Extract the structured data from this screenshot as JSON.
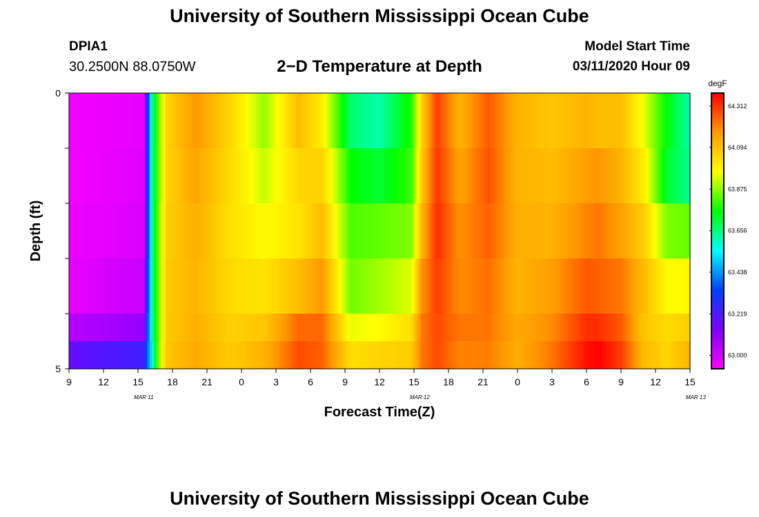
{
  "header": {
    "title": "University of Southern Mississippi Ocean Cube",
    "station_id": "DPIA1",
    "station_coords": "30.2500N 88.0750W",
    "chart_title": "2−D Temperature at Depth",
    "model_start_label": "Model Start Time",
    "model_start_time": "03/11/2020 Hour 09"
  },
  "footer": {
    "title": "University of Southern Mississippi Ocean Cube"
  },
  "chart_data": {
    "type": "heatmap",
    "title": "2−D Temperature at Depth",
    "xlabel": "Forecast Time(Z)",
    "ylabel": "Depth (ft)",
    "x_tick_labels": [
      "9",
      "12",
      "15",
      "18",
      "21",
      "0",
      "3",
      "6",
      "9",
      "12",
      "15",
      "18",
      "21",
      "0",
      "3",
      "6",
      "9",
      "12",
      "15"
    ],
    "y_tick_labels": [
      "0",
      "5"
    ],
    "date_labels": [
      "MAR 11",
      "MAR 12",
      "MAR 13"
    ],
    "x_hours": [
      0,
      54
    ],
    "depth_range_ft": [
      0,
      5
    ],
    "colorbar_unit": "degF",
    "colorbar_ticks": [
      "64.312",
      "64.094",
      "63.875",
      "63.656",
      "63.438",
      "63.219",
      "63.000"
    ],
    "color_range": [
      62.93,
      64.38
    ],
    "colorscale": [
      "#ff00ff",
      "#8000ff",
      "#0040ff",
      "#00ffff",
      "#00ff00",
      "#ffff00",
      "#ff9900",
      "#ff0000"
    ],
    "depth_layers_ft": [
      0.25,
      1.25,
      2.25,
      3.25,
      4.25,
      4.75
    ],
    "temperature_keyframes": [
      {
        "hour": 0,
        "temps": [
          62.95,
          62.95,
          62.96,
          62.97,
          63.05,
          63.18
        ]
      },
      {
        "hour": 6.5,
        "temps": [
          62.97,
          62.98,
          62.99,
          63.02,
          63.1,
          63.24
        ]
      },
      {
        "hour": 7.2,
        "temps": [
          63.62,
          63.62,
          63.62,
          63.62,
          63.6,
          63.55
        ]
      },
      {
        "hour": 7.8,
        "temps": [
          63.85,
          63.85,
          63.86,
          63.86,
          63.86,
          63.87
        ]
      },
      {
        "hour": 8.5,
        "temps": [
          64.05,
          64.05,
          64.06,
          64.07,
          64.07,
          64.08
        ]
      },
      {
        "hour": 11,
        "temps": [
          64.17,
          64.15,
          64.13,
          64.12,
          64.13,
          64.14
        ]
      },
      {
        "hour": 14,
        "temps": [
          64.05,
          64.04,
          64.03,
          64.04,
          64.06,
          64.07
        ]
      },
      {
        "hour": 17,
        "temps": [
          63.88,
          63.92,
          63.97,
          64.02,
          64.08,
          64.12
        ]
      },
      {
        "hour": 20,
        "temps": [
          64.1,
          64.05,
          64.02,
          64.1,
          64.24,
          64.28
        ]
      },
      {
        "hour": 22,
        "temps": [
          64.0,
          64.06,
          64.1,
          64.17,
          64.24,
          64.25
        ]
      },
      {
        "hour": 24.5,
        "temps": [
          63.67,
          63.76,
          63.82,
          63.85,
          63.95,
          64.03
        ]
      },
      {
        "hour": 27,
        "temps": [
          63.62,
          63.72,
          63.84,
          63.89,
          63.97,
          64.05
        ]
      },
      {
        "hour": 29.8,
        "temps": [
          63.78,
          63.8,
          63.86,
          63.94,
          64.03,
          64.07
        ]
      },
      {
        "hour": 30.7,
        "temps": [
          64.06,
          64.08,
          64.12,
          64.18,
          64.22,
          64.22
        ]
      },
      {
        "hour": 32,
        "temps": [
          64.3,
          64.31,
          64.32,
          64.3,
          64.28,
          64.28
        ]
      },
      {
        "hour": 34,
        "temps": [
          64.12,
          64.15,
          64.18,
          64.19,
          64.22,
          64.2
        ]
      },
      {
        "hour": 36.5,
        "temps": [
          64.26,
          64.27,
          64.25,
          64.23,
          64.22,
          64.21
        ]
      },
      {
        "hour": 39,
        "temps": [
          64.12,
          64.12,
          64.13,
          64.12,
          64.14,
          64.13
        ]
      },
      {
        "hour": 42,
        "temps": [
          64.08,
          64.1,
          64.12,
          64.16,
          64.19,
          64.22
        ]
      },
      {
        "hour": 45,
        "temps": [
          64.12,
          64.16,
          64.2,
          64.26,
          64.32,
          64.36
        ]
      },
      {
        "hour": 46,
        "temps": [
          64.1,
          64.18,
          64.22,
          64.25,
          64.32,
          64.38
        ]
      },
      {
        "hour": 48,
        "temps": [
          64.1,
          64.12,
          64.16,
          64.22,
          64.26,
          64.3
        ]
      },
      {
        "hour": 50,
        "temps": [
          63.95,
          64.0,
          64.06,
          64.1,
          64.08,
          64.1
        ]
      },
      {
        "hour": 52,
        "temps": [
          63.75,
          63.72,
          63.86,
          63.97,
          64.04,
          64.05
        ]
      },
      {
        "hour": 54,
        "temps": [
          63.62,
          63.64,
          63.84,
          63.98,
          64.06,
          64.12
        ]
      }
    ]
  }
}
